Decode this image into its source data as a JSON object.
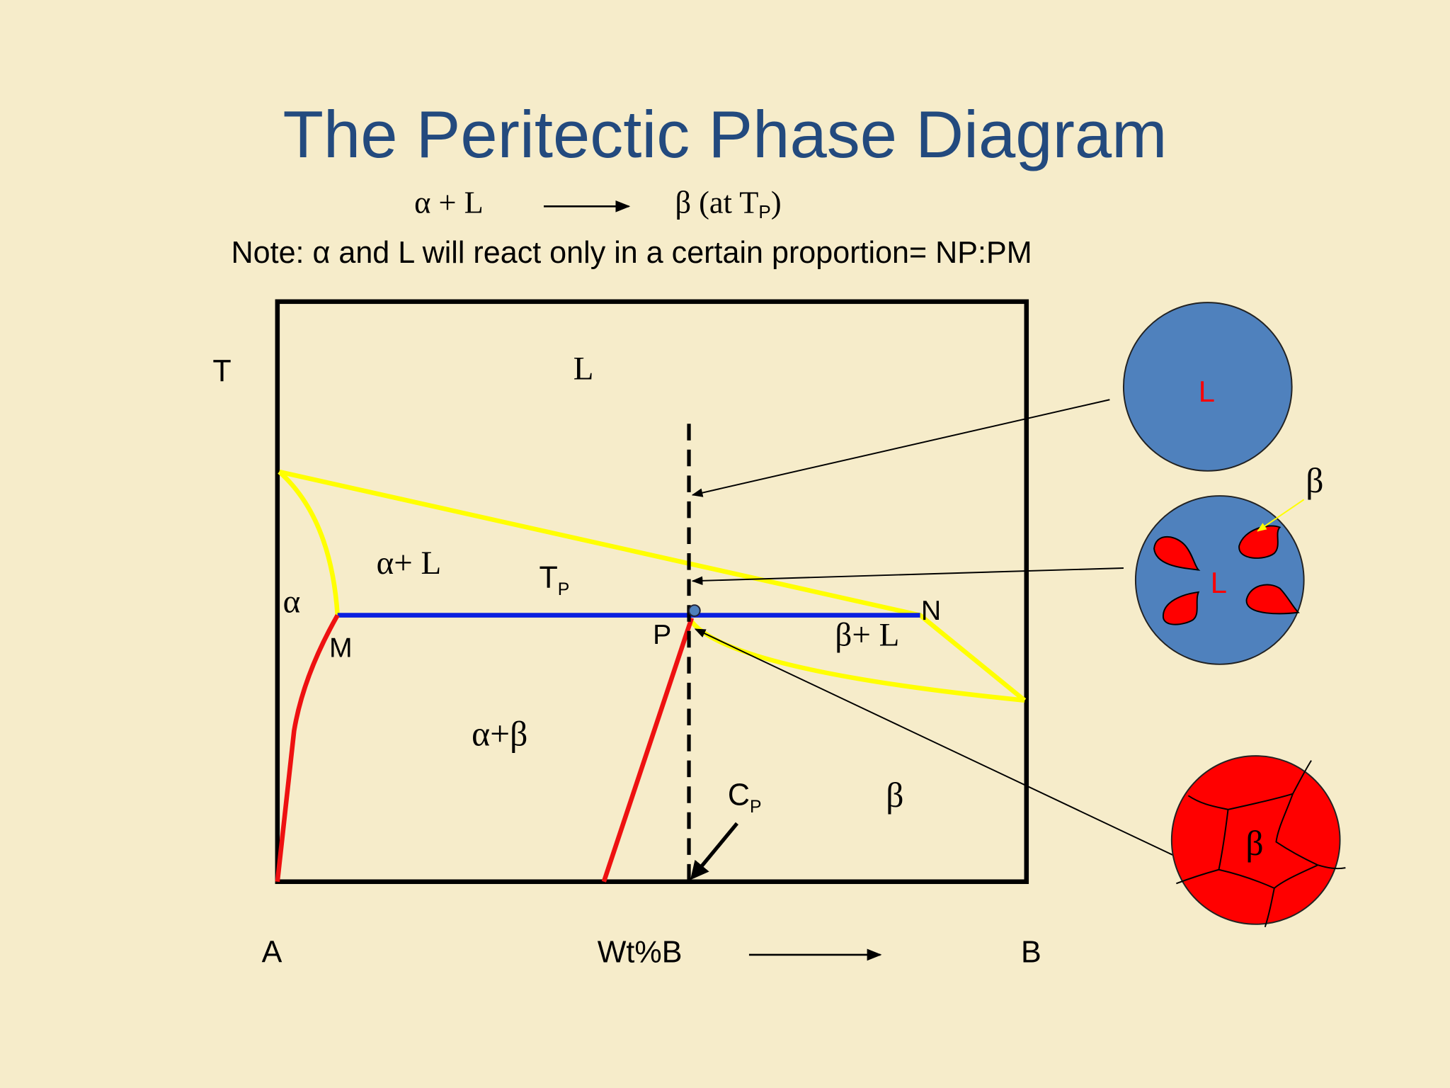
{
  "title": "The Peritectic Phase Diagram",
  "reaction": {
    "reactants": "α + L",
    "product": "β (at T",
    "product_sub": "P",
    "product_close": ")"
  },
  "note": "Note:  α and L will react only in a certain proportion= NP:PM",
  "diagram": {
    "axis_label_t": "T",
    "region_l": "L",
    "region_alpha_l": "α+ L",
    "tp": "T",
    "tp_sub": "P",
    "region_alpha": "α",
    "point_m": "M",
    "point_p": "P",
    "point_n": "N",
    "region_beta_l": "β+ L",
    "region_alpha_beta": "α+β",
    "cp": "C",
    "cp_sub": "P",
    "region_beta": "β",
    "axis_a": "A",
    "axis_x": "Wt%B",
    "axis_b": "B"
  },
  "micro": {
    "liquid": "L",
    "beta_pointer": "β",
    "mixed_liquid": "L",
    "solid_beta": "β"
  }
}
